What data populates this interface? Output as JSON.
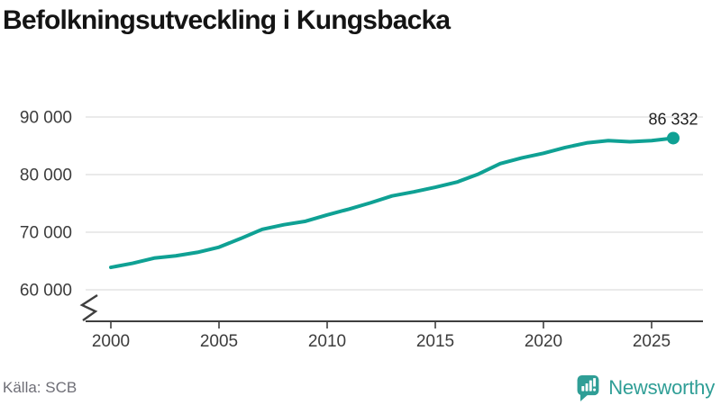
{
  "title": "Befolkningsutveckling i Kungsbacka",
  "source": "Källa: SCB",
  "brand": {
    "name": "Newsworthy",
    "color": "#2f9e96"
  },
  "colors": {
    "line": "#0fa194",
    "grid": "#e3e3e3",
    "axis": "#3f3f3f",
    "tick_text": "#3c3c3c",
    "end_label_text": "#1f1f1f"
  },
  "chart_data": {
    "type": "line",
    "title": "Befolkningsutveckling i Kungsbacka",
    "xlabel": "",
    "ylabel": "",
    "x": [
      2000,
      2001,
      2002,
      2003,
      2004,
      2005,
      2006,
      2007,
      2008,
      2009,
      2010,
      2011,
      2012,
      2013,
      2014,
      2015,
      2016,
      2017,
      2018,
      2019,
      2020,
      2021,
      2022,
      2023,
      2024,
      2025,
      2026
    ],
    "series": [
      {
        "name": "Befolkning",
        "values": [
          63900,
          64600,
          65500,
          65900,
          66500,
          67400,
          68900,
          70500,
          71300,
          71900,
          73000,
          74000,
          75100,
          76300,
          77000,
          77800,
          78700,
          80100,
          81900,
          82900,
          83700,
          84700,
          85500,
          85900,
          85700,
          85900,
          86332
        ]
      }
    ],
    "end_value": 86332,
    "end_label": "86 332",
    "x_ticks": [
      2000,
      2005,
      2010,
      2015,
      2020,
      2025
    ],
    "y_ticks": [
      60000,
      70000,
      80000,
      90000
    ],
    "y_tick_labels": [
      "60 000",
      "70 000",
      "80 000",
      "90 000"
    ],
    "ylim": [
      60000,
      90000
    ],
    "axis_break": true,
    "grid": "horizontal-only",
    "legend": "none"
  }
}
